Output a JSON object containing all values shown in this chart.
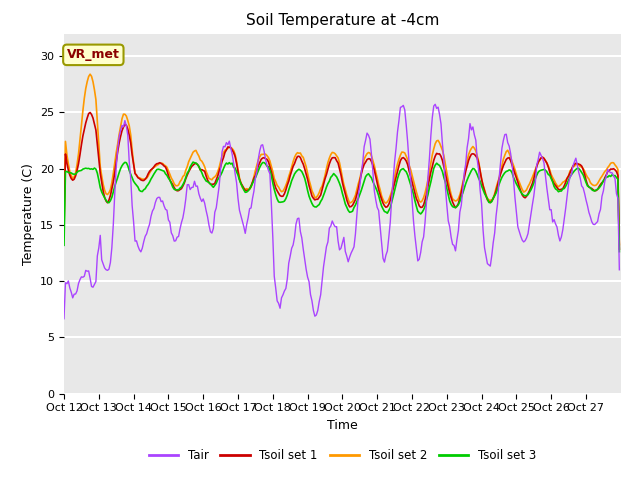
{
  "title": "Soil Temperature at -4cm",
  "xlabel": "Time",
  "ylabel": "Temperature (C)",
  "ylim": [
    0,
    32
  ],
  "yticks": [
    0,
    5,
    10,
    15,
    20,
    25,
    30
  ],
  "xlim": [
    0,
    384
  ],
  "xtick_positions": [
    0,
    24,
    48,
    72,
    96,
    120,
    144,
    168,
    192,
    216,
    240,
    264,
    288,
    312,
    336,
    360
  ],
  "xtick_labels": [
    "Oct 12",
    "Oct 13",
    "Oct 14",
    "Oct 15",
    "Oct 16",
    "Oct 17",
    "Oct 18",
    "Oct 19",
    "Oct 20",
    "Oct 21",
    "Oct 22",
    "Oct 23",
    "Oct 24",
    "Oct 25",
    "Oct 26",
    "Oct 27"
  ],
  "series_colors": [
    "#aa44ff",
    "#cc0000",
    "#ff9900",
    "#00cc00"
  ],
  "series_labels": [
    "Tair",
    "Tsoil set 1",
    "Tsoil set 2",
    "Tsoil set 3"
  ],
  "series_linewidths": [
    1.0,
    1.2,
    1.2,
    1.2
  ],
  "annotation_text": "VR_met",
  "background_color": "#e8e8e8",
  "plot_bg_color": "#e8e8e8",
  "fig_bg_color": "#ffffff",
  "grid_color": "#ffffff",
  "title_fontsize": 11,
  "axis_fontsize": 9,
  "tick_fontsize": 8
}
